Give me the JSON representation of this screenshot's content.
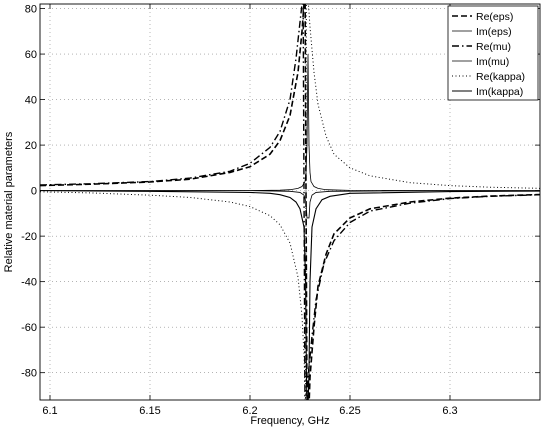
{
  "chart_data": {
    "type": "line",
    "title": "",
    "xlabel": "Frequency, GHz",
    "ylabel": "Relative material parameters",
    "xlim": [
      6.095,
      6.345
    ],
    "ylim": [
      -92,
      82
    ],
    "xticks": [
      6.1,
      6.15,
      6.2,
      6.25,
      6.3
    ],
    "xtick_labels": [
      "6.1",
      "6.15",
      "6.2",
      "6.25",
      "6.3"
    ],
    "yticks": [
      -80,
      -60,
      -40,
      -20,
      0,
      20,
      40,
      60,
      80
    ],
    "ytick_labels": [
      "-80",
      "-60",
      "-40",
      "-20",
      "0",
      "20",
      "40",
      "60",
      "80"
    ],
    "grid": true,
    "legend_position": "top-right",
    "resonance_frequency": 6.229,
    "series": [
      {
        "name": "Re(eps)",
        "style": "dashed",
        "width": 1.6,
        "x": [
          6.095,
          6.12,
          6.15,
          6.17,
          6.19,
          6.2,
          6.21,
          6.215,
          6.22,
          6.224,
          6.226,
          6.227,
          6.2275,
          6.2285,
          6.229,
          6.2295,
          6.23,
          6.232,
          6.234,
          6.238,
          6.242,
          6.25,
          6.26,
          6.28,
          6.3,
          6.32,
          6.345
        ],
        "y": [
          2.2,
          2.8,
          3.8,
          5,
          8,
          10.5,
          16,
          22,
          33,
          52,
          70,
          82,
          95,
          -95,
          -95,
          -95,
          -82,
          -60,
          -42,
          -28,
          -19,
          -12,
          -8,
          -5,
          -3.3,
          -2.4,
          -1.7
        ]
      },
      {
        "name": "Im(eps)",
        "style": "solid",
        "width": 0.8,
        "x": [
          6.095,
          6.15,
          6.2,
          6.215,
          6.22,
          6.224,
          6.226,
          6.2275,
          6.228,
          6.2285,
          6.229,
          6.2295,
          6.23,
          6.2305,
          6.232,
          6.234,
          6.238,
          6.25,
          6.3,
          6.345
        ],
        "y": [
          0,
          0,
          0,
          0.2,
          0.4,
          1,
          1.8,
          4,
          8,
          20,
          60,
          20,
          8,
          4,
          1.8,
          1,
          0.4,
          0.1,
          0,
          0
        ]
      },
      {
        "name": "Re(mu)",
        "style": "dashdot",
        "width": 1.4,
        "x": [
          6.095,
          6.12,
          6.15,
          6.17,
          6.19,
          6.2,
          6.21,
          6.215,
          6.22,
          6.223,
          6.225,
          6.226,
          6.2265,
          6.2275,
          6.228,
          6.2285,
          6.229,
          6.231,
          6.233,
          6.237,
          6.242,
          6.25,
          6.26,
          6.28,
          6.3,
          6.32,
          6.345
        ],
        "y": [
          2.5,
          3,
          4,
          5.5,
          8.5,
          12,
          19,
          26,
          40,
          58,
          74,
          82,
          95,
          -95,
          -95,
          -95,
          -82,
          -64,
          -48,
          -32,
          -22,
          -14,
          -9,
          -5.5,
          -3.5,
          -2.5,
          -1.8
        ]
      },
      {
        "name": "Im(mu)",
        "style": "solid",
        "width": 0.8,
        "x": [
          6.095,
          6.2,
          6.22,
          6.225,
          6.227,
          6.228,
          6.2285,
          6.2295,
          6.23,
          6.231,
          6.233,
          6.24,
          6.3,
          6.345
        ],
        "y": [
          0,
          0,
          -0.3,
          -0.8,
          -2,
          -5,
          -12,
          -12,
          -5,
          -2,
          -0.8,
          -0.3,
          0,
          0
        ]
      },
      {
        "name": "Re(kappa)",
        "style": "dotted",
        "width": 1,
        "x": [
          6.095,
          6.12,
          6.15,
          6.17,
          6.19,
          6.2,
          6.21,
          6.215,
          6.22,
          6.224,
          6.226,
          6.227,
          6.2278,
          6.2282,
          6.23,
          6.232,
          6.234,
          6.238,
          6.242,
          6.25,
          6.26,
          6.28,
          6.3,
          6.32,
          6.345
        ],
        "y": [
          -0.5,
          -1,
          -2,
          -3,
          -5,
          -7,
          -11,
          -15,
          -23,
          -38,
          -55,
          -72,
          -95,
          95,
          72,
          52,
          38,
          24,
          16,
          10,
          6.5,
          3.5,
          2.2,
          1.5,
          1
        ]
      },
      {
        "name": "Im(kappa)",
        "style": "solid",
        "width": 1.1,
        "x": [
          6.095,
          6.15,
          6.2,
          6.21,
          6.215,
          6.22,
          6.223,
          6.225,
          6.227,
          6.2278,
          6.2282,
          6.2285,
          6.229,
          6.2295,
          6.23,
          6.231,
          6.233,
          6.236,
          6.24,
          6.25,
          6.3,
          6.345
        ],
        "y": [
          0,
          -0.3,
          -0.8,
          -1.2,
          -1.8,
          -3,
          -5,
          -8,
          -16,
          -40,
          -80,
          -95,
          -95,
          -80,
          -40,
          -16,
          -8,
          -4,
          -2.5,
          -1.2,
          -0.4,
          -0.2
        ]
      }
    ]
  }
}
